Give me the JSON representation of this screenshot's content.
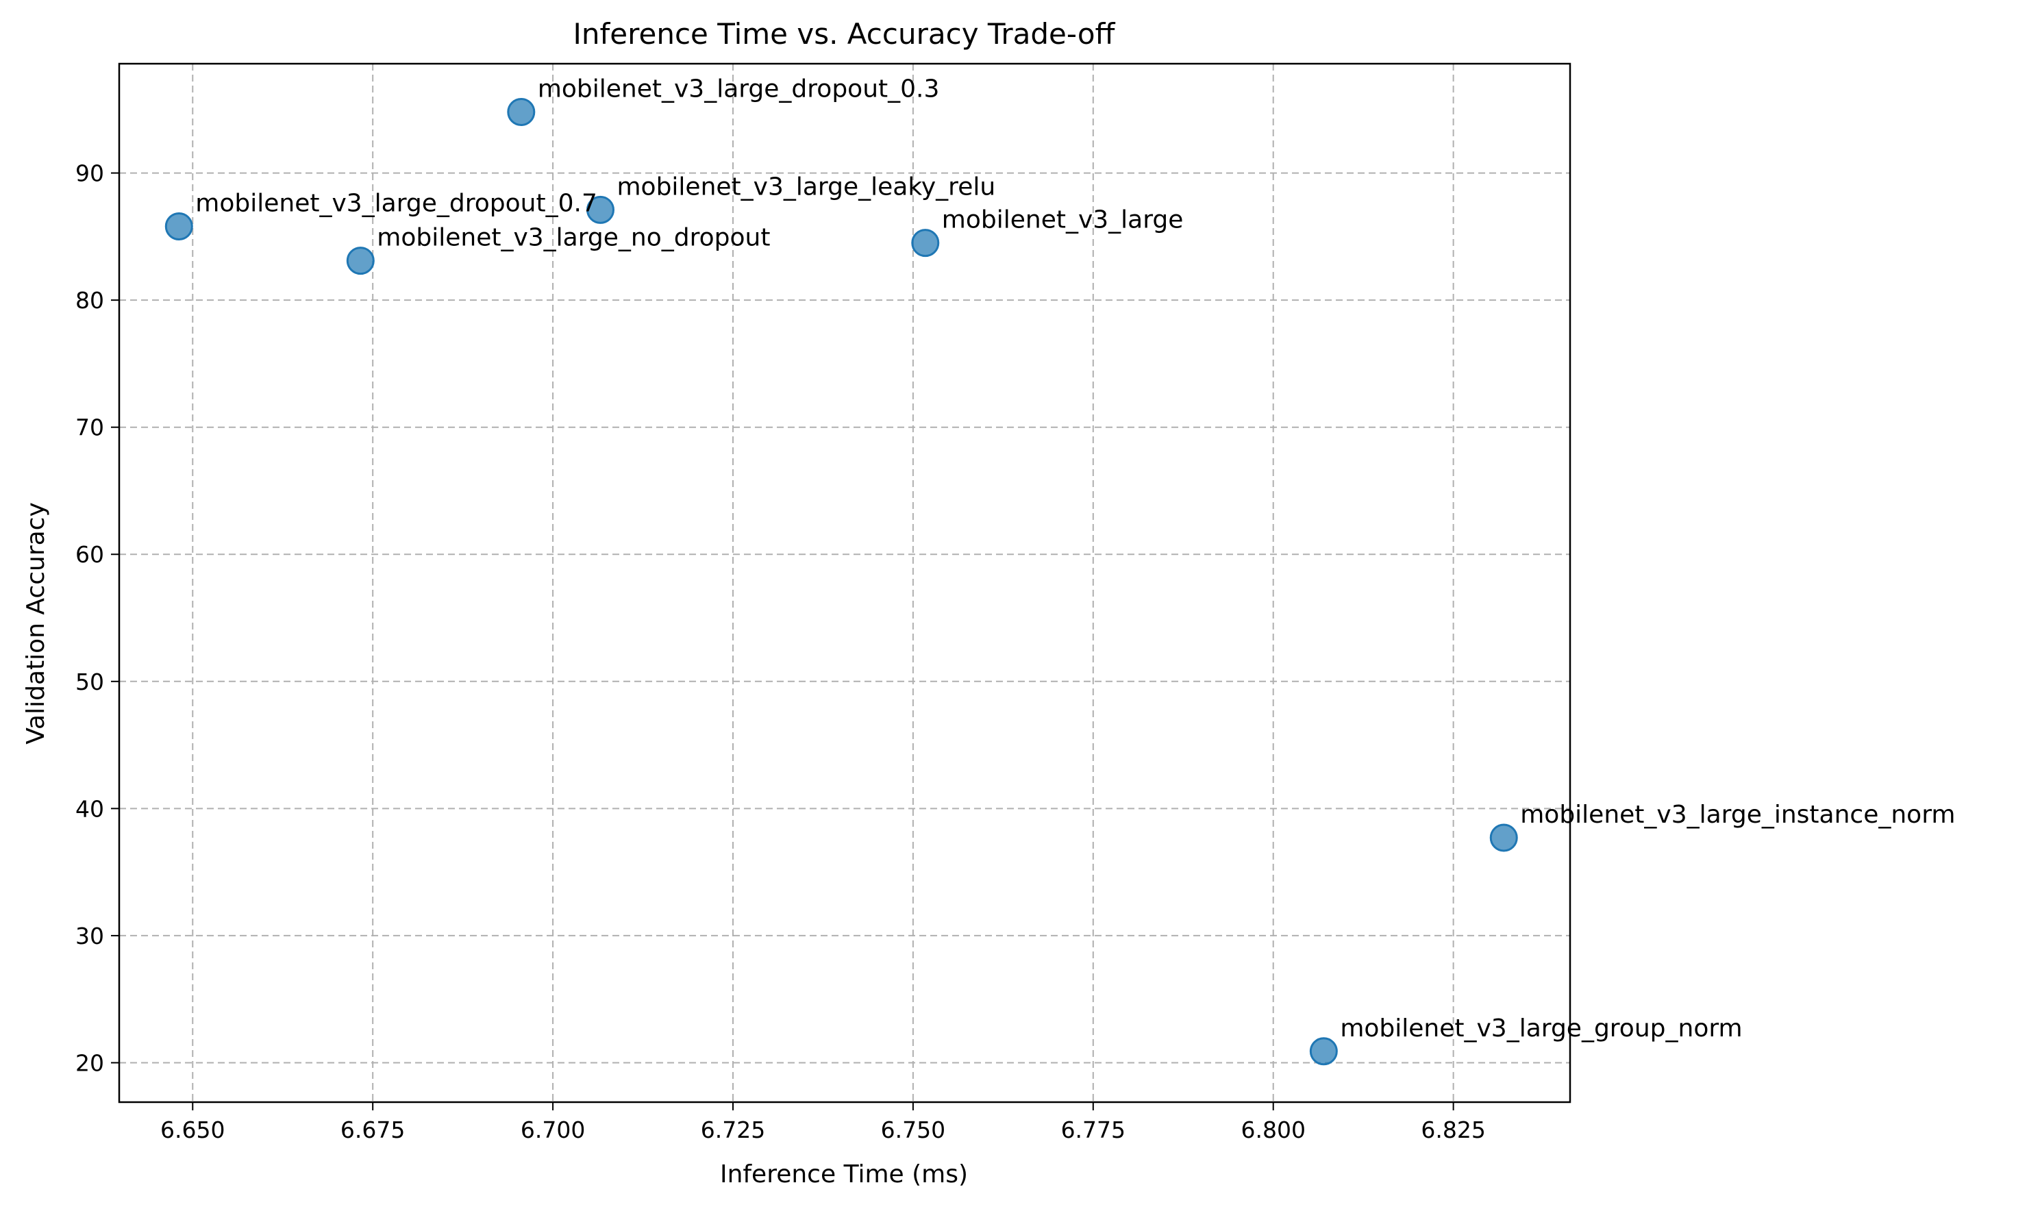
{
  "chart_data": {
    "type": "scatter",
    "title": "Inference Time vs. Accuracy Trade-off",
    "xlabel": "Inference Time (ms)",
    "ylabel": "Validation Accuracy",
    "xlim": [
      6.6398,
      6.8412
    ],
    "ylim": [
      16.9,
      98.6
    ],
    "xticks": [
      6.65,
      6.675,
      6.7,
      6.725,
      6.75,
      6.775,
      6.8,
      6.825
    ],
    "xtick_labels": [
      "6.650",
      "6.675",
      "6.700",
      "6.725",
      "6.750",
      "6.775",
      "6.800",
      "6.825"
    ],
    "yticks": [
      20,
      30,
      40,
      50,
      60,
      70,
      80,
      90
    ],
    "ytick_labels": [
      "20",
      "30",
      "40",
      "50",
      "60",
      "70",
      "80",
      "90"
    ],
    "grid": true,
    "color": "#1f77b4",
    "points": [
      {
        "label": "mobilenet_v3_large_dropout_0.7",
        "x": 6.6481,
        "y": 85.8
      },
      {
        "label": "mobilenet_v3_large_no_dropout",
        "x": 6.6733,
        "y": 83.1
      },
      {
        "label": "mobilenet_v3_large_dropout_0.3",
        "x": 6.6956,
        "y": 94.8
      },
      {
        "label": "mobilenet_v3_large_leaky_relu",
        "x": 6.7066,
        "y": 87.1
      },
      {
        "label": "mobilenet_v3_large",
        "x": 6.7517,
        "y": 84.5
      },
      {
        "label": "mobilenet_v3_large_group_norm",
        "x": 6.807,
        "y": 20.9
      },
      {
        "label": "mobilenet_v3_large_instance_norm",
        "x": 6.832,
        "y": 37.7
      }
    ]
  }
}
